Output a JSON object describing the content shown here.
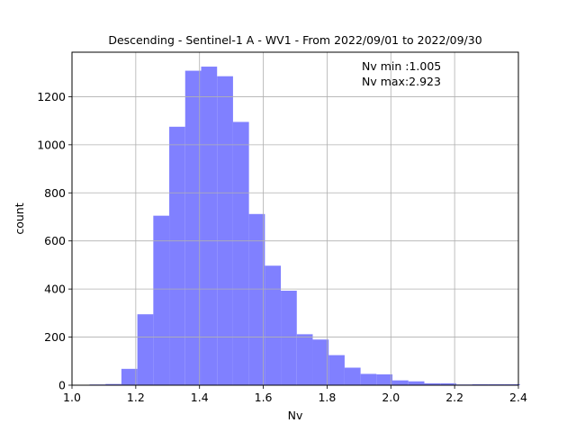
{
  "chart_data": {
    "type": "bar",
    "title": "Descending - Sentinel-1 A - WV1 - From 2022/09/01 to 2022/09/30",
    "xlabel": "Nv",
    "ylabel": "count",
    "xlim": [
      1.0,
      2.4
    ],
    "ylim": [
      0,
      1385
    ],
    "xticks": [
      "1.0",
      "1.2",
      "1.4",
      "1.6",
      "1.8",
      "2.0",
      "2.2",
      "2.4"
    ],
    "yticks": [
      "0",
      "200",
      "400",
      "600",
      "800",
      "1000",
      "1200"
    ],
    "grid": true,
    "bar_color": "#8080ff",
    "bins": [
      {
        "x0": 1.005,
        "x1": 1.055,
        "count": 0
      },
      {
        "x0": 1.055,
        "x1": 1.105,
        "count": 3
      },
      {
        "x0": 1.105,
        "x1": 1.155,
        "count": 5
      },
      {
        "x0": 1.155,
        "x1": 1.205,
        "count": 68
      },
      {
        "x0": 1.205,
        "x1": 1.255,
        "count": 295
      },
      {
        "x0": 1.255,
        "x1": 1.305,
        "count": 705
      },
      {
        "x0": 1.305,
        "x1": 1.355,
        "count": 1075
      },
      {
        "x0": 1.355,
        "x1": 1.405,
        "count": 1308
      },
      {
        "x0": 1.405,
        "x1": 1.455,
        "count": 1325
      },
      {
        "x0": 1.455,
        "x1": 1.505,
        "count": 1285
      },
      {
        "x0": 1.505,
        "x1": 1.555,
        "count": 1095
      },
      {
        "x0": 1.555,
        "x1": 1.605,
        "count": 712
      },
      {
        "x0": 1.605,
        "x1": 1.655,
        "count": 497
      },
      {
        "x0": 1.655,
        "x1": 1.705,
        "count": 393
      },
      {
        "x0": 1.705,
        "x1": 1.755,
        "count": 212
      },
      {
        "x0": 1.755,
        "x1": 1.805,
        "count": 190
      },
      {
        "x0": 1.805,
        "x1": 1.855,
        "count": 125
      },
      {
        "x0": 1.855,
        "x1": 1.905,
        "count": 73
      },
      {
        "x0": 1.905,
        "x1": 1.955,
        "count": 47
      },
      {
        "x0": 1.955,
        "x1": 2.005,
        "count": 45
      },
      {
        "x0": 2.005,
        "x1": 2.055,
        "count": 20
      },
      {
        "x0": 2.055,
        "x1": 2.105,
        "count": 16
      },
      {
        "x0": 2.105,
        "x1": 2.155,
        "count": 8
      },
      {
        "x0": 2.155,
        "x1": 2.205,
        "count": 8
      },
      {
        "x0": 2.205,
        "x1": 2.255,
        "count": 3
      },
      {
        "x0": 2.255,
        "x1": 2.305,
        "count": 4
      },
      {
        "x0": 2.305,
        "x1": 2.355,
        "count": 4
      },
      {
        "x0": 2.355,
        "x1": 2.405,
        "count": 4
      }
    ],
    "annotations": [
      "Nv min :1.005",
      "Nv max:2.923"
    ]
  }
}
